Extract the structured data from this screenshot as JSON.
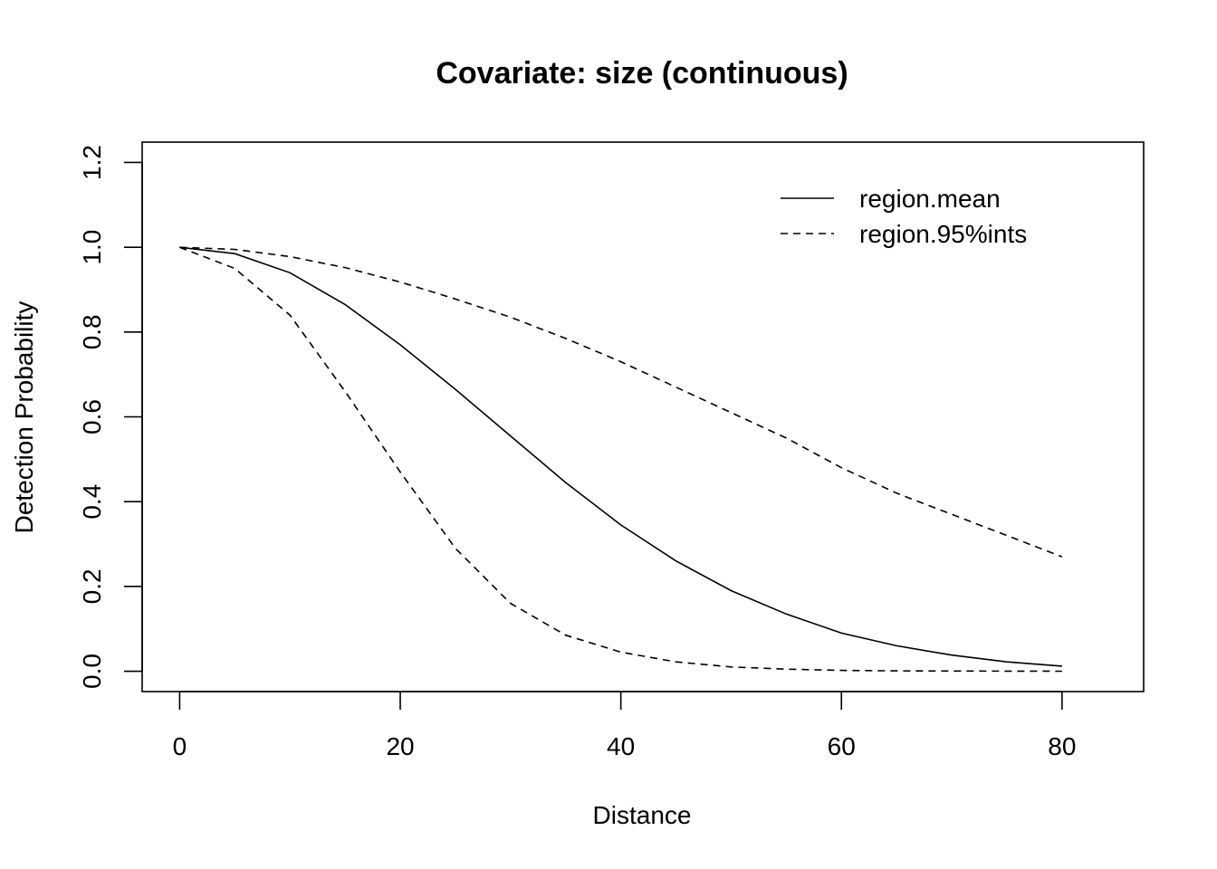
{
  "chart_data": {
    "type": "line",
    "title": "Covariate: size (continuous)",
    "xlabel": "Distance",
    "ylabel": "Detection Probability",
    "xlim": [
      -3.4,
      87.4
    ],
    "ylim": [
      -0.048,
      1.248
    ],
    "xticks": [
      0,
      20,
      40,
      60,
      80
    ],
    "yticks": [
      0.0,
      0.2,
      0.4,
      0.6,
      0.8,
      1.0,
      1.2
    ],
    "xtick_labels": [
      "0",
      "20",
      "40",
      "60",
      "80"
    ],
    "ytick_labels": [
      "0.0",
      "0.2",
      "0.4",
      "0.6",
      "0.8",
      "1.0",
      "1.2"
    ],
    "grid": false,
    "legend_position": "top-right",
    "series": [
      {
        "name": "region.mean",
        "style": "solid",
        "x": [
          0,
          5,
          10,
          15,
          20,
          25,
          30,
          35,
          40,
          45,
          50,
          55,
          60,
          65,
          70,
          75,
          80
        ],
        "y": [
          1.0,
          0.985,
          0.94,
          0.865,
          0.77,
          0.665,
          0.555,
          0.445,
          0.345,
          0.26,
          0.19,
          0.135,
          0.09,
          0.06,
          0.038,
          0.022,
          0.012
        ]
      },
      {
        "name": "region.95%ints",
        "style": "dashed",
        "x": [
          0,
          5,
          10,
          15,
          20,
          25,
          30,
          35,
          40,
          45,
          50,
          55,
          60,
          65,
          70,
          75,
          80
        ],
        "y": [
          1.0,
          0.995,
          0.978,
          0.952,
          0.918,
          0.878,
          0.835,
          0.785,
          0.73,
          0.67,
          0.61,
          0.55,
          0.48,
          0.42,
          0.37,
          0.32,
          0.27
        ]
      },
      {
        "name": "",
        "style": "dashed",
        "x": [
          0,
          5,
          10,
          15,
          20,
          25,
          30,
          35,
          40,
          45,
          50,
          55,
          60,
          65,
          70,
          75,
          80
        ],
        "y": [
          1.0,
          0.95,
          0.84,
          0.66,
          0.47,
          0.29,
          0.16,
          0.085,
          0.045,
          0.022,
          0.01,
          0.005,
          0.002,
          0.001,
          0.0005,
          0.0002,
          0.0001
        ]
      }
    ],
    "legend": [
      {
        "label": "region.mean",
        "style": "solid"
      },
      {
        "label": "region.95%ints",
        "style": "dashed"
      }
    ]
  }
}
